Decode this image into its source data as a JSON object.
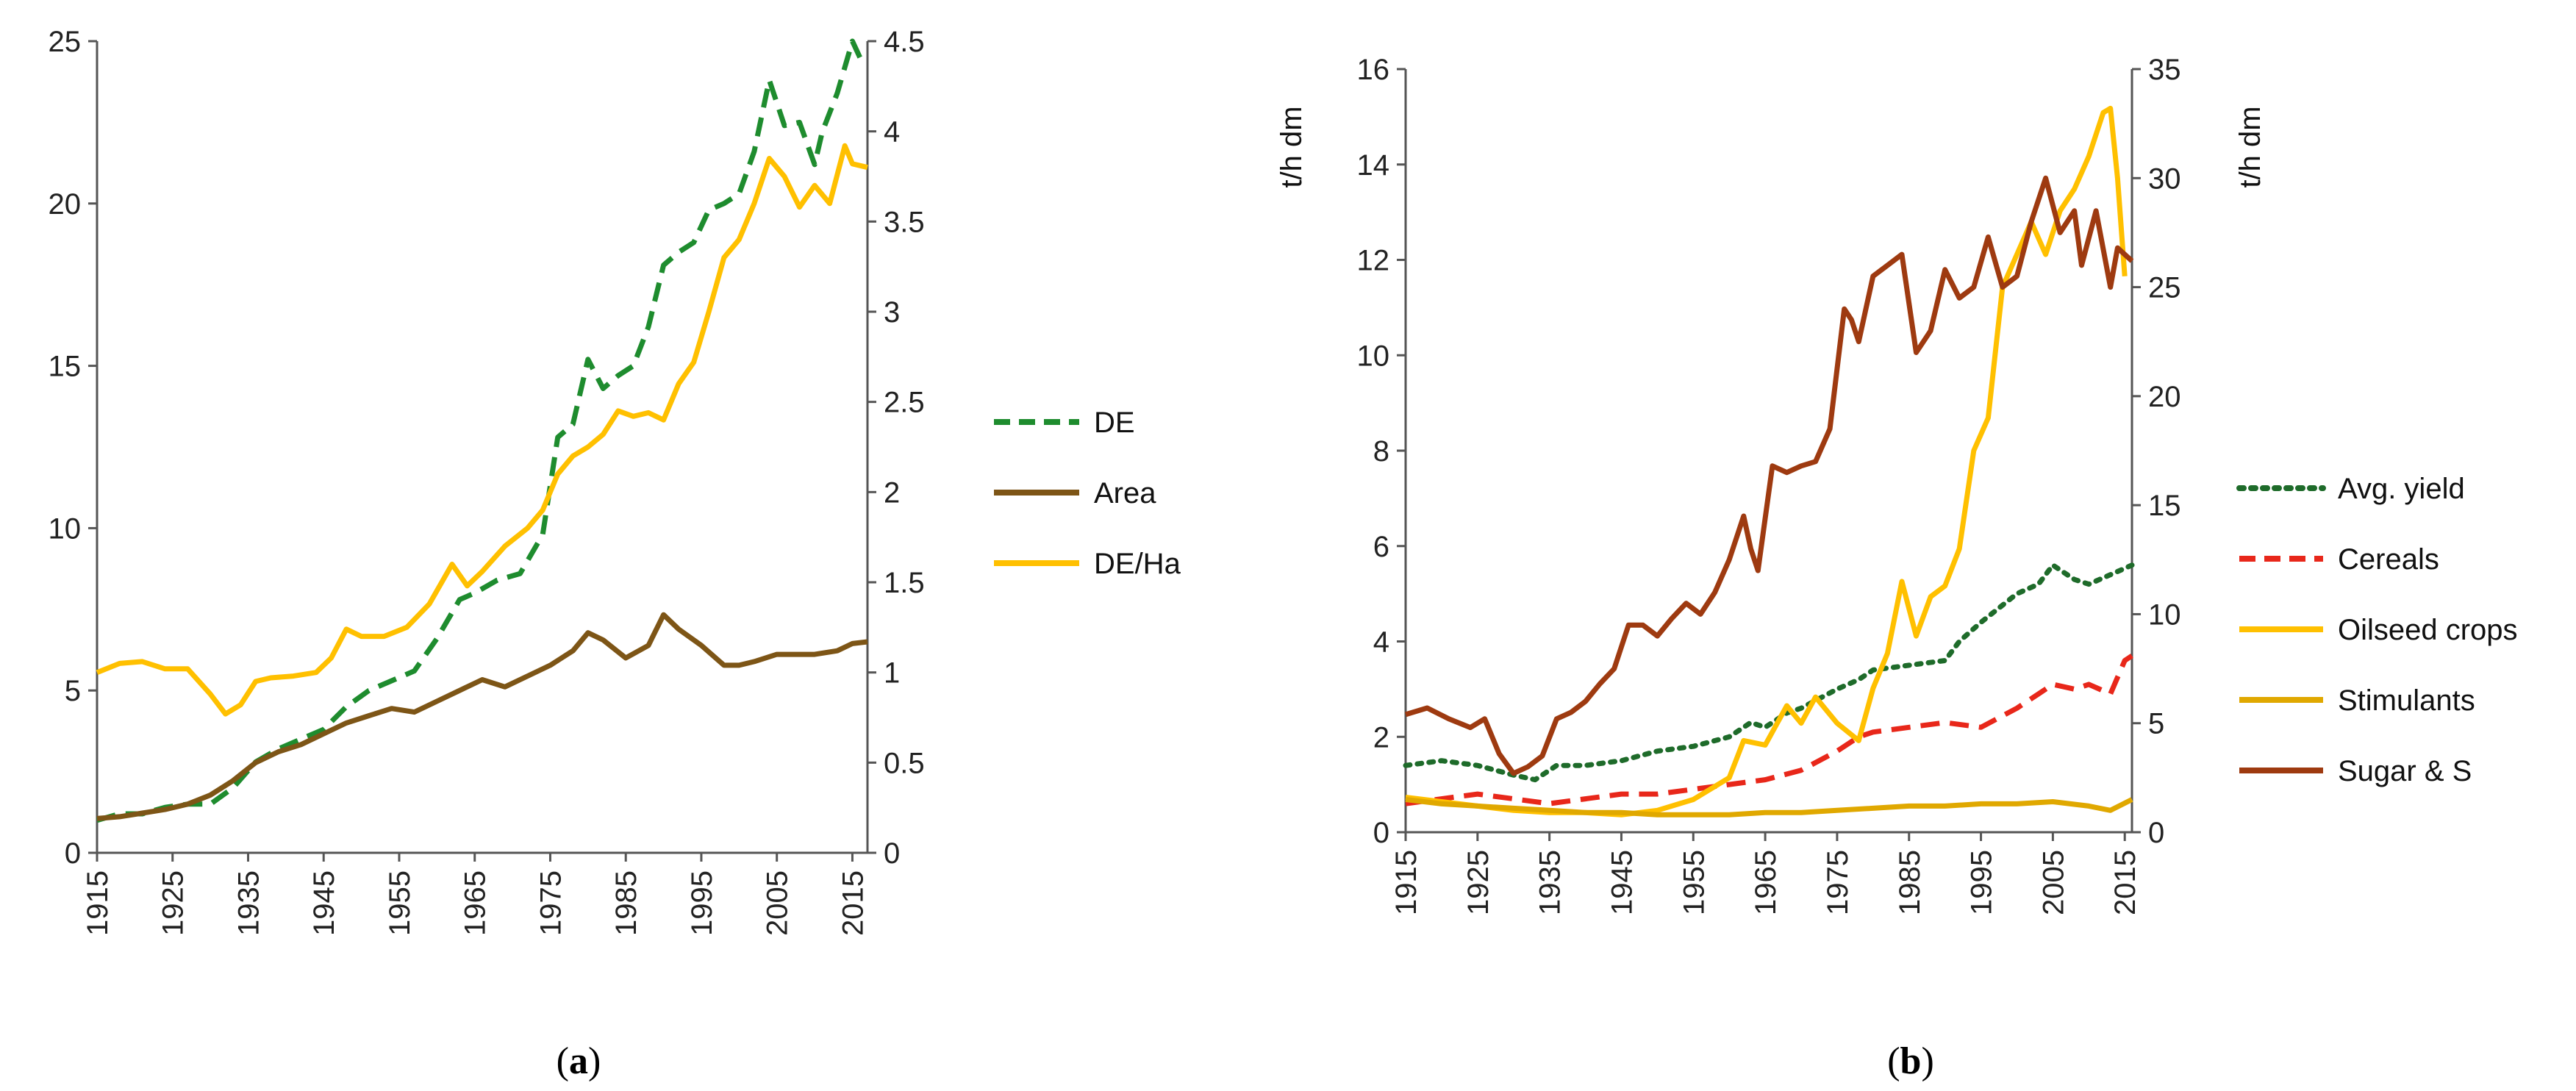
{
  "captions": [
    {
      "open": "(",
      "letter": "a",
      "close": ")"
    },
    {
      "open": "(",
      "letter": "b",
      "close": ")"
    }
  ],
  "chart_data": [
    {
      "type": "line",
      "x_ticks": [
        "1915",
        "1925",
        "1935",
        "1945",
        "1955",
        "1965",
        "1975",
        "1985",
        "1995",
        "2005",
        "2015"
      ],
      "xlim": [
        1915,
        2017
      ],
      "y_left": {
        "label": "",
        "lim": [
          0,
          25
        ],
        "ticks": [
          "0",
          "5",
          "10",
          "15",
          "20",
          "25"
        ]
      },
      "y_right": {
        "label": "",
        "lim": [
          0,
          4.5
        ],
        "ticks": [
          "0",
          "0.5",
          "1",
          "1.5",
          "2",
          "2.5",
          "3",
          "3.5",
          "4",
          "4.5"
        ]
      },
      "legend_position": "right",
      "grid": false,
      "series": [
        {
          "name": "DE",
          "axis": "left",
          "color": "#1e8c2e",
          "dash": "dashed",
          "x": [
            1915,
            1918,
            1921,
            1924,
            1927,
            1930,
            1933,
            1936,
            1939,
            1942,
            1945,
            1948,
            1951,
            1954,
            1957,
            1960,
            1963,
            1965,
            1968,
            1971,
            1974,
            1976,
            1978,
            1980,
            1982,
            1984,
            1986,
            1988,
            1990,
            1992,
            1994,
            1996,
            1998,
            2000,
            2002,
            2004,
            2006,
            2008,
            2010,
            2011,
            2013,
            2015,
            2016
          ],
          "y": [
            1.0,
            1.2,
            1.2,
            1.4,
            1.5,
            1.5,
            2.0,
            2.8,
            3.2,
            3.5,
            3.8,
            4.5,
            5.0,
            5.3,
            5.6,
            6.6,
            7.8,
            8.0,
            8.4,
            8.6,
            9.8,
            12.8,
            13.2,
            15.2,
            14.3,
            14.7,
            15.0,
            16.2,
            18.1,
            18.5,
            18.8,
            19.8,
            20.0,
            20.3,
            21.6,
            23.8,
            22.4,
            22.5,
            21.2,
            22.2,
            23.4,
            25.0,
            24.5
          ]
        },
        {
          "name": "Area",
          "axis": "right",
          "color": "#7d5516",
          "dash": "solid",
          "x": [
            1915,
            1918,
            1921,
            1924,
            1927,
            1930,
            1933,
            1936,
            1939,
            1942,
            1945,
            1948,
            1951,
            1954,
            1957,
            1960,
            1963,
            1966,
            1969,
            1972,
            1975,
            1978,
            1980,
            1982,
            1985,
            1988,
            1990,
            1992,
            1995,
            1998,
            2000,
            2002,
            2005,
            2008,
            2010,
            2013,
            2015,
            2017
          ],
          "y": [
            0.19,
            0.2,
            0.22,
            0.24,
            0.27,
            0.32,
            0.4,
            0.5,
            0.56,
            0.6,
            0.66,
            0.72,
            0.76,
            0.8,
            0.78,
            0.84,
            0.9,
            0.96,
            0.92,
            0.98,
            1.04,
            1.12,
            1.22,
            1.18,
            1.08,
            1.15,
            1.32,
            1.24,
            1.15,
            1.04,
            1.04,
            1.06,
            1.1,
            1.1,
            1.1,
            1.12,
            1.16,
            1.17
          ]
        },
        {
          "name": "DE/Ha",
          "axis": "right",
          "color": "#ffc000",
          "dash": "solid",
          "x": [
            1915,
            1918,
            1921,
            1924,
            1927,
            1930,
            1932,
            1934,
            1936,
            1938,
            1941,
            1944,
            1946,
            1948,
            1950,
            1953,
            1956,
            1959,
            1962,
            1964,
            1966,
            1969,
            1972,
            1974,
            1976,
            1978,
            1980,
            1982,
            1984,
            1986,
            1988,
            1990,
            1992,
            1994,
            1996,
            1998,
            2000,
            2002,
            2004,
            2006,
            2008,
            2010,
            2012,
            2014,
            2015,
            2017
          ],
          "y": [
            1.0,
            1.05,
            1.06,
            1.02,
            1.02,
            0.88,
            0.77,
            0.82,
            0.95,
            0.97,
            0.98,
            1.0,
            1.08,
            1.24,
            1.2,
            1.2,
            1.25,
            1.38,
            1.6,
            1.48,
            1.56,
            1.7,
            1.8,
            1.9,
            2.1,
            2.2,
            2.25,
            2.32,
            2.45,
            2.42,
            2.44,
            2.4,
            2.6,
            2.72,
            3.0,
            3.3,
            3.4,
            3.6,
            3.85,
            3.75,
            3.58,
            3.7,
            3.6,
            3.92,
            3.82,
            3.8
          ]
        }
      ]
    },
    {
      "type": "line",
      "x_ticks": [
        "1915",
        "1925",
        "1935",
        "1945",
        "1955",
        "1965",
        "1975",
        "1985",
        "1995",
        "2005",
        "2015"
      ],
      "xlim": [
        1915,
        2016
      ],
      "y_left": {
        "label": "t/h dm",
        "lim": [
          0,
          16
        ],
        "ticks": [
          "0",
          "2",
          "4",
          "6",
          "8",
          "10",
          "12",
          "14",
          "16"
        ]
      },
      "y_right": {
        "label": "t/h dm",
        "lim": [
          0,
          35
        ],
        "ticks": [
          "0",
          "5",
          "10",
          "15",
          "20",
          "25",
          "30",
          "35"
        ]
      },
      "legend_position": "right",
      "grid": false,
      "series": [
        {
          "name": "Avg. yield",
          "axis": "left",
          "color": "#1e6b2a",
          "dash": "dotted",
          "x": [
            1915,
            1920,
            1925,
            1930,
            1933,
            1936,
            1940,
            1945,
            1950,
            1955,
            1960,
            1963,
            1965,
            1968,
            1970,
            1975,
            1978,
            1980,
            1985,
            1990,
            1992,
            1995,
            2000,
            2003,
            2005,
            2008,
            2010,
            2013,
            2016
          ],
          "y": [
            1.4,
            1.5,
            1.4,
            1.2,
            1.1,
            1.4,
            1.4,
            1.5,
            1.7,
            1.8,
            2.0,
            2.3,
            2.2,
            2.5,
            2.6,
            3.0,
            3.2,
            3.4,
            3.5,
            3.6,
            4.0,
            4.4,
            5.0,
            5.2,
            5.6,
            5.3,
            5.2,
            5.4,
            5.6
          ]
        },
        {
          "name": "Cereals",
          "axis": "left",
          "color": "#e8271a",
          "dash": "dashed",
          "x": [
            1915,
            1920,
            1925,
            1930,
            1935,
            1940,
            1945,
            1950,
            1955,
            1960,
            1965,
            1970,
            1975,
            1978,
            1980,
            1985,
            1990,
            1995,
            2000,
            2003,
            2005,
            2008,
            2010,
            2013,
            2015,
            2016
          ],
          "y": [
            0.6,
            0.7,
            0.8,
            0.7,
            0.6,
            0.7,
            0.8,
            0.8,
            0.9,
            1.0,
            1.1,
            1.3,
            1.7,
            2.0,
            2.1,
            2.2,
            2.3,
            2.2,
            2.6,
            2.9,
            3.1,
            3.0,
            3.1,
            2.9,
            3.6,
            3.7
          ]
        },
        {
          "name": "Oilseed crops",
          "axis": "right",
          "color": "#ffc000",
          "dash": "solid",
          "x": [
            1915,
            1920,
            1925,
            1930,
            1935,
            1940,
            1945,
            1950,
            1955,
            1960,
            1962,
            1965,
            1968,
            1970,
            1972,
            1975,
            1978,
            1980,
            1982,
            1984,
            1986,
            1988,
            1990,
            1992,
            1994,
            1996,
            1998,
            2000,
            2002,
            2004,
            2006,
            2008,
            2010,
            2012,
            2013,
            2014,
            2015
          ],
          "y": [
            1.6,
            1.4,
            1.2,
            1.0,
            0.9,
            0.9,
            0.8,
            1.0,
            1.5,
            2.5,
            4.2,
            4.0,
            5.8,
            5.0,
            6.2,
            5.0,
            4.2,
            6.6,
            8.2,
            11.5,
            9.0,
            10.8,
            11.3,
            13.0,
            17.5,
            19.0,
            25.0,
            26.5,
            28.0,
            26.5,
            28.5,
            29.5,
            31.0,
            33.0,
            33.2,
            30.0,
            25.5
          ]
        },
        {
          "name": "Stimulants",
          "axis": "right",
          "color": "#e0a800",
          "dash": "solid",
          "x": [
            1915,
            1920,
            1925,
            1930,
            1935,
            1940,
            1945,
            1950,
            1955,
            1960,
            1965,
            1970,
            1975,
            1980,
            1985,
            1990,
            1995,
            2000,
            2005,
            2010,
            2013,
            2016
          ],
          "y": [
            1.5,
            1.3,
            1.2,
            1.1,
            1.0,
            0.9,
            0.9,
            0.8,
            0.8,
            0.8,
            0.9,
            0.9,
            1.0,
            1.1,
            1.2,
            1.2,
            1.3,
            1.3,
            1.4,
            1.2,
            1.0,
            1.5
          ]
        },
        {
          "name": "Sugar & S",
          "axis": "right",
          "color": "#9e3a10",
          "dash": "solid",
          "x": [
            1915,
            1918,
            1921,
            1924,
            1926,
            1928,
            1930,
            1932,
            1934,
            1936,
            1938,
            1940,
            1942,
            1944,
            1946,
            1948,
            1950,
            1952,
            1954,
            1956,
            1958,
            1960,
            1962,
            1963,
            1964,
            1966,
            1968,
            1970,
            1972,
            1974,
            1976,
            1977,
            1978,
            1980,
            1982,
            1984,
            1986,
            1988,
            1990,
            1992,
            1994,
            1996,
            1998,
            2000,
            2002,
            2004,
            2006,
            2008,
            2009,
            2011,
            2013,
            2014,
            2016
          ],
          "y": [
            5.4,
            5.7,
            5.2,
            4.8,
            5.2,
            3.6,
            2.7,
            3.0,
            3.5,
            5.2,
            5.5,
            6.0,
            6.8,
            7.5,
            9.5,
            9.5,
            9.0,
            9.8,
            10.5,
            10.0,
            11.0,
            12.5,
            14.5,
            13.0,
            12.0,
            16.8,
            16.5,
            16.8,
            17.0,
            18.5,
            24.0,
            23.5,
            22.5,
            25.5,
            26.0,
            26.5,
            22.0,
            23.0,
            25.8,
            24.5,
            25.0,
            27.3,
            25.0,
            25.5,
            28.0,
            30.0,
            27.5,
            28.5,
            26.0,
            28.5,
            25.0,
            26.8,
            26.2
          ]
        }
      ]
    }
  ]
}
